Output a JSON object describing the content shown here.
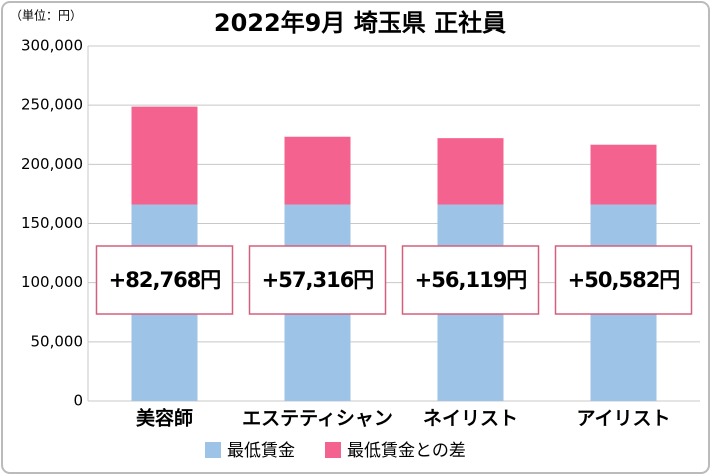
{
  "chart_data": {
    "type": "stacked_bar",
    "title": "2022年9月 埼玉県 正社員",
    "unit_label": "（単位：円）",
    "categories": [
      "美容師",
      "エステティシャン",
      "ネイリスト",
      "アイリスト"
    ],
    "series": [
      {
        "name": "最低賃金",
        "color": "#9dc3e6",
        "values": [
          166000,
          166000,
          166000,
          166000
        ]
      },
      {
        "name": "最低賃金との差",
        "color": "#f4628f",
        "values": [
          82768,
          57316,
          56119,
          50582
        ],
        "value_labels": [
          "+82,768円",
          "+57,316円",
          "+56,119円",
          "+50,582円"
        ]
      }
    ],
    "ylim": [
      0,
      300000
    ],
    "yticks": [
      0,
      {
        "value": 50000,
        "label": "50,000"
      },
      {
        "value": 100000,
        "label": "100,000"
      },
      {
        "value": 150000,
        "label": "150,000"
      },
      {
        "value": 200000,
        "label": "200,000"
      },
      {
        "value": 250000,
        "label": "250,000"
      },
      {
        "value": 300000,
        "label": "300,000"
      }
    ],
    "grid": true
  }
}
